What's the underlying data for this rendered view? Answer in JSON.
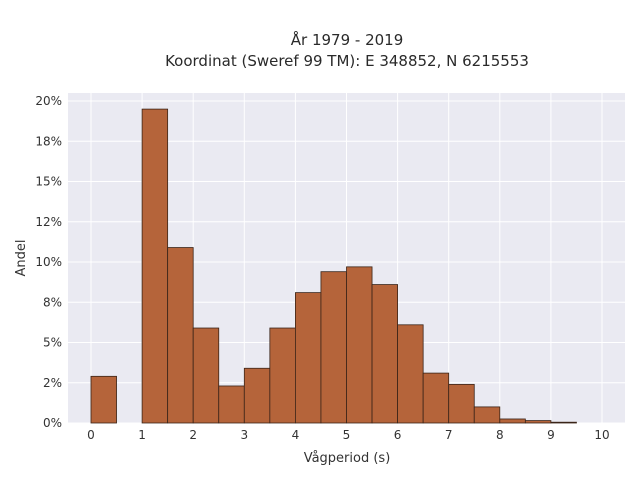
{
  "chart_data": {
    "type": "bar",
    "title": [
      "År 1979 - 2019",
      "Koordinat (Sweref 99 TM): E 348852, N 6215553"
    ],
    "xlabel": "Vågperiod (s)",
    "ylabel": "Andel",
    "bin_width": 0.5,
    "bin_starts": [
      0,
      0.5,
      1,
      1.5,
      2,
      2.5,
      3,
      3.5,
      4,
      4.5,
      5,
      5.5,
      6,
      6.5,
      7,
      7.5,
      8,
      8.5,
      9,
      9.5
    ],
    "values": [
      2.9,
      0,
      19.5,
      10.9,
      5.9,
      2.3,
      3.4,
      5.9,
      8.1,
      9.4,
      9.7,
      8.6,
      6.1,
      3.1,
      2.4,
      1.0,
      0.25,
      0.15,
      0.05,
      0
    ],
    "xlim": [
      -0.45,
      10.45
    ],
    "ylim": [
      0,
      20.5
    ],
    "x_ticks": [
      0,
      1,
      2,
      3,
      4,
      5,
      6,
      7,
      8,
      9,
      10
    ],
    "x_tick_labels": [
      "0",
      "1",
      "2",
      "3",
      "4",
      "5",
      "6",
      "7",
      "8",
      "9",
      "10"
    ],
    "y_ticks": [
      0,
      2.5,
      5,
      7.5,
      10,
      12.5,
      15,
      17.5,
      20
    ],
    "y_tick_labels": [
      "0%",
      "2%",
      "5%",
      "8%",
      "10%",
      "12%",
      "15%",
      "18%",
      "20%"
    ],
    "grid": true,
    "bar_color": "#b5643a",
    "bar_edge_color": "#3a2418",
    "plot_background": "#eaeaf2",
    "grid_color": "#ffffff"
  }
}
